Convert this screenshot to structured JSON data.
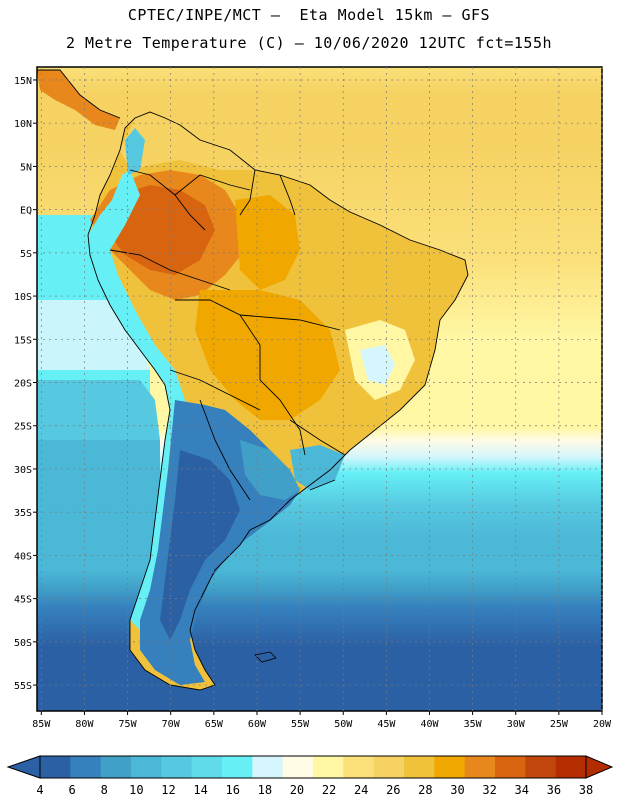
{
  "title_line1": "CPTEC/INPE/MCT –  Eta Model 15km – GFS",
  "title_line2": "2 Metre Temperature (C) – 10/06/2020 12UTC fct=155h",
  "lat_labels": [
    "15N",
    "10N",
    "5N",
    "EQ",
    "5S",
    "10S",
    "15S",
    "20S",
    "25S",
    "30S",
    "35S",
    "40S",
    "45S",
    "50S",
    "55S"
  ],
  "lat_values": [
    15,
    10,
    5,
    0,
    -5,
    -10,
    -15,
    -20,
    -25,
    -30,
    -35,
    -40,
    -45,
    -50,
    -55
  ],
  "lon_labels": [
    "85W",
    "80W",
    "75W",
    "70W",
    "65W",
    "60W",
    "55W",
    "50W",
    "45W",
    "40W",
    "35W",
    "30W",
    "25W",
    "20W"
  ],
  "lon_values": [
    -85,
    -80,
    -75,
    -70,
    -65,
    -60,
    -55,
    -50,
    -45,
    -40,
    -35,
    -30,
    -25,
    -20
  ],
  "map_extent": {
    "lon_min": -85.5,
    "lon_max": -20,
    "lat_min": -58,
    "lat_max": 16.5
  },
  "colorbar": {
    "labels": [
      "4",
      "6",
      "8",
      "10",
      "12",
      "14",
      "16",
      "18",
      "20",
      "22",
      "24",
      "26",
      "28",
      "30",
      "32",
      "34",
      "36",
      "38"
    ],
    "colors": [
      "#2c60a4",
      "#3580bd",
      "#41a0c8",
      "#4cb8d8",
      "#56c9e0",
      "#5fdce8",
      "#66f0f6",
      "#d5f6fc",
      "#fffbe5",
      "#fff7a4",
      "#fbe07a",
      "#f5d262",
      "#f0c23c",
      "#f0a800",
      "#e8881c",
      "#d86410",
      "#c0460c",
      "#b32d00"
    ]
  }
}
